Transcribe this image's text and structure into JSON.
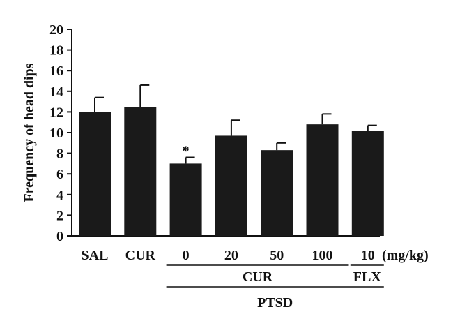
{
  "chart_data": {
    "type": "bar",
    "title": "",
    "xlabel": "",
    "ylabel": "Frequency of head dips",
    "ylim": [
      0,
      20
    ],
    "yticks": [
      0,
      2,
      4,
      6,
      8,
      10,
      12,
      14,
      16,
      18,
      20
    ],
    "grid": false,
    "categories": [
      "SAL",
      "CUR",
      "0",
      "20",
      "50",
      "100",
      "10"
    ],
    "units_label": "(mg/kg)",
    "series": [
      {
        "values": [
          12.0,
          12.5,
          7.0,
          9.7,
          8.3,
          10.8,
          10.2
        ],
        "errors": [
          1.4,
          2.1,
          0.6,
          1.5,
          0.7,
          1.0,
          0.5
        ],
        "color": "#1a1a1a"
      }
    ],
    "annotations": [
      {
        "category": "0",
        "text": "*"
      }
    ],
    "groups": [
      {
        "label": "CUR",
        "from": 2,
        "to": 5
      },
      {
        "label": "FLX",
        "from": 6,
        "to": 6
      },
      {
        "label": "PTSD",
        "from": 2,
        "to": 6
      }
    ]
  }
}
